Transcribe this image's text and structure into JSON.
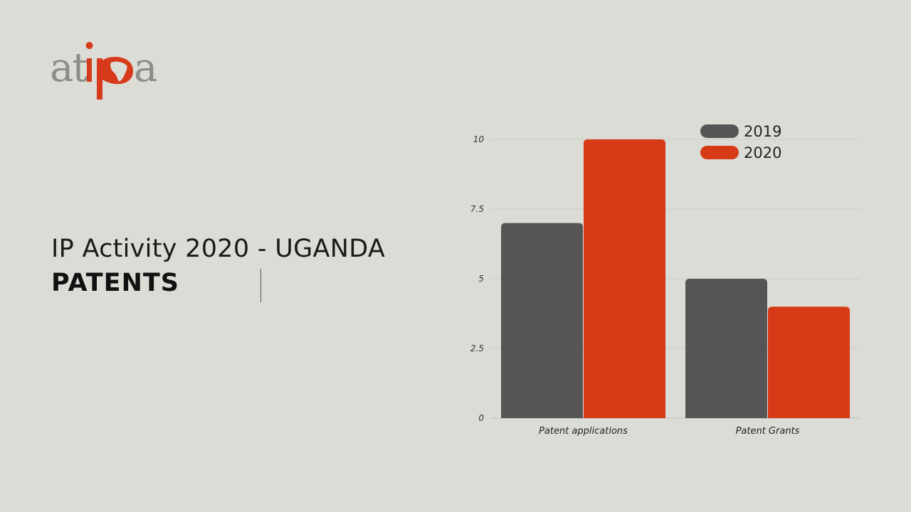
{
  "brand": {
    "logo_text": "atipa",
    "colors": {
      "gray": "#8c8c88",
      "red": "#d63a1a"
    }
  },
  "header": {
    "title": "IP Activity 2020 - UGANDA",
    "subtitle": "PATENTS"
  },
  "chart_data": {
    "type": "bar",
    "categories": [
      "Patent applications",
      "Patent Grants"
    ],
    "series": [
      {
        "name": "2019",
        "values": [
          7,
          5
        ],
        "color": "#555555"
      },
      {
        "name": "2020",
        "values": [
          10,
          4
        ],
        "color": "#d63a16"
      }
    ],
    "yticks": [
      "0",
      "2.5",
      "5",
      "7.5",
      "10"
    ],
    "ylim": [
      0,
      10
    ],
    "grid": true,
    "legend_position": "top-right"
  }
}
